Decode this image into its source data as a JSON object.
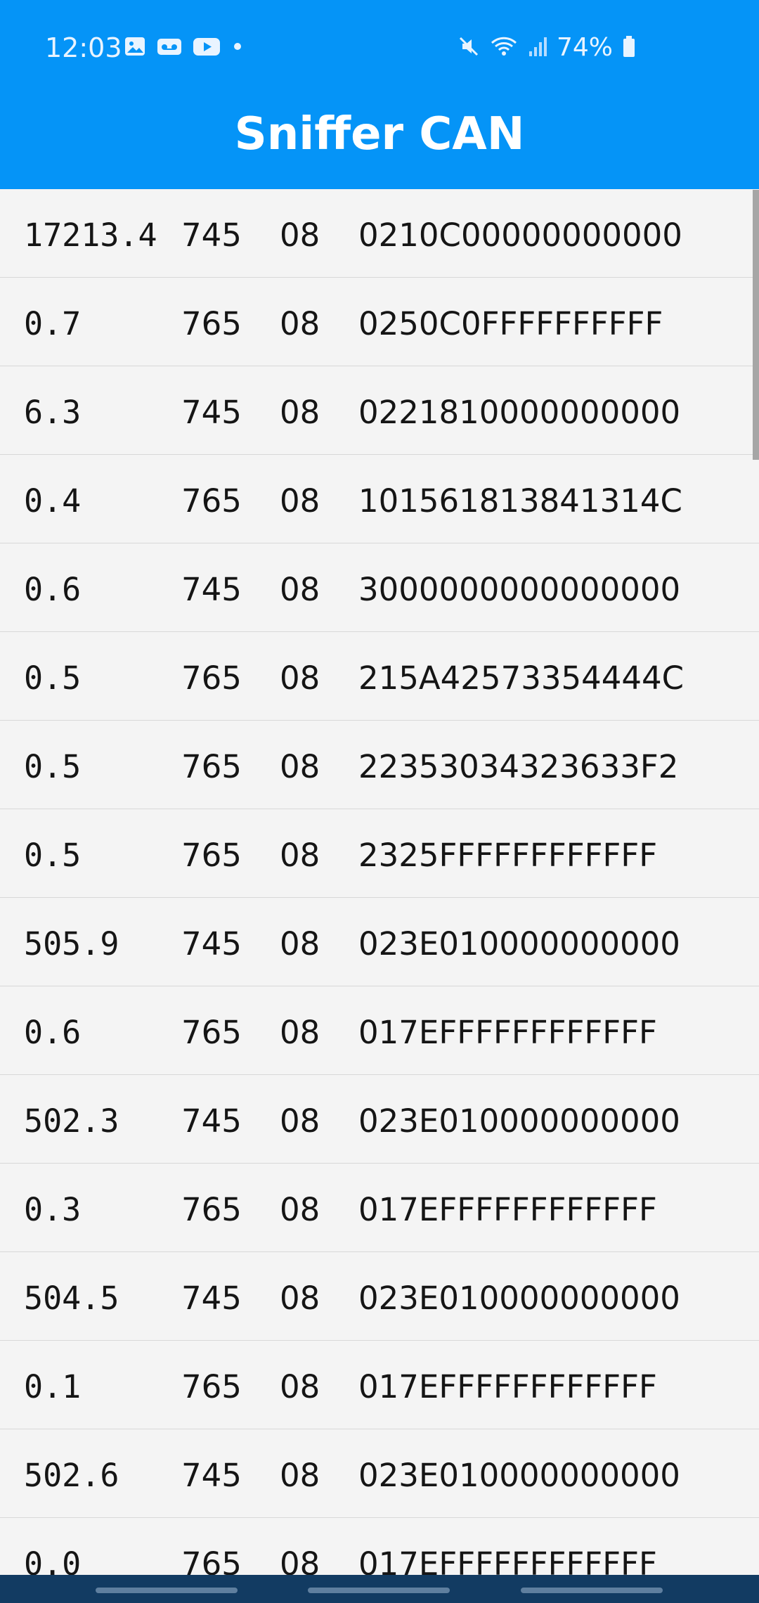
{
  "status_bar": {
    "time": "12:03",
    "battery": "74%",
    "left_icons": [
      "gallery-icon",
      "voicemail-icon",
      "youtube-icon",
      "dot-icon"
    ],
    "right_icons": [
      "mute-icon",
      "wifi-icon",
      "signal-icon",
      "battery-icon"
    ]
  },
  "app": {
    "title": "Sniffer CAN"
  },
  "messages": [
    {
      "time": "17213.4",
      "id": "745",
      "dlc": "08",
      "data": "0210C00000000000"
    },
    {
      "time": "0.7",
      "id": "765",
      "dlc": "08",
      "data": "0250C0FFFFFFFFFF"
    },
    {
      "time": "6.3",
      "id": "745",
      "dlc": "08",
      "data": "0221810000000000"
    },
    {
      "time": "0.4",
      "id": "765",
      "dlc": "08",
      "data": "101561813841314C"
    },
    {
      "time": "0.6",
      "id": "745",
      "dlc": "08",
      "data": "3000000000000000"
    },
    {
      "time": "0.5",
      "id": "765",
      "dlc": "08",
      "data": "215A42573354444C"
    },
    {
      "time": "0.5",
      "id": "765",
      "dlc": "08",
      "data": "22353034323633F2"
    },
    {
      "time": "0.5",
      "id": "765",
      "dlc": "08",
      "data": "2325FFFFFFFFFFFF"
    },
    {
      "time": "505.9",
      "id": "745",
      "dlc": "08",
      "data": "023E010000000000"
    },
    {
      "time": "0.6",
      "id": "765",
      "dlc": "08",
      "data": "017EFFFFFFFFFFFF"
    },
    {
      "time": "502.3",
      "id": "745",
      "dlc": "08",
      "data": "023E010000000000"
    },
    {
      "time": "0.3",
      "id": "765",
      "dlc": "08",
      "data": "017EFFFFFFFFFFFF"
    },
    {
      "time": "504.5",
      "id": "745",
      "dlc": "08",
      "data": "023E010000000000"
    },
    {
      "time": "0.1",
      "id": "765",
      "dlc": "08",
      "data": "017EFFFFFFFFFFFF"
    },
    {
      "time": "502.6",
      "id": "745",
      "dlc": "08",
      "data": "023E010000000000"
    },
    {
      "time": "0.0",
      "id": "765",
      "dlc": "08",
      "data": "017EFFFFFFFFFFFF"
    }
  ]
}
